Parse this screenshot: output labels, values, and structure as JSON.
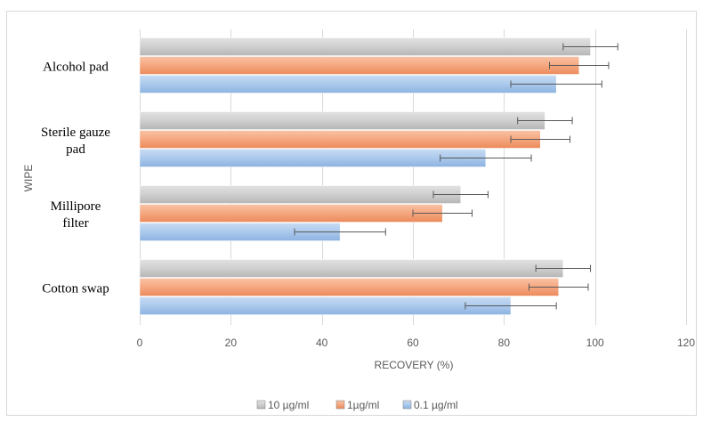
{
  "chart_data": {
    "type": "bar",
    "orientation": "horizontal",
    "categories": [
      "Alcohol pad",
      "Sterile gauze pad",
      "Millipore filter",
      "Cotton swap"
    ],
    "category_label_lines": [
      [
        "Alcohol pad"
      ],
      [
        "Sterile gauze",
        "pad"
      ],
      [
        "Millipore",
        "filter"
      ],
      [
        "Cotton swap"
      ]
    ],
    "series": [
      {
        "name": "10 µg/ml",
        "color": "#c9c9c9",
        "values": [
          99,
          89,
          70.5,
          93
        ],
        "errors": [
          6,
          6,
          6,
          6
        ]
      },
      {
        "name": "1µg/ml",
        "color": "#f4a582",
        "values": [
          96.5,
          88,
          66.5,
          92
        ],
        "errors": [
          6.5,
          6.5,
          6.5,
          6.5
        ]
      },
      {
        "name": "0.1 µg/ml",
        "color": "#a9c8ea",
        "values": [
          91.5,
          76,
          44,
          81.5
        ],
        "errors": [
          10,
          10,
          10,
          10
        ]
      }
    ],
    "xlabel": "RECOVERY  (%)",
    "ylabel": "WIPE",
    "xlim": [
      0,
      120
    ],
    "xticks": [
      "0",
      "20",
      "40",
      "60",
      "80",
      "100",
      "120"
    ],
    "grid": true,
    "legend_position": "bottom"
  }
}
